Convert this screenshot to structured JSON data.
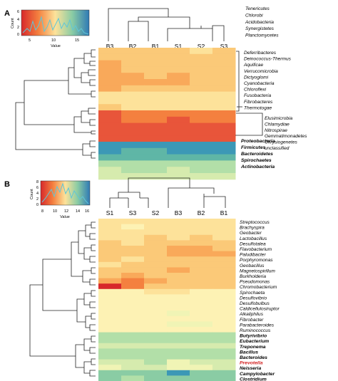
{
  "palette": [
    "#d7282b",
    "#e8553a",
    "#f4803f",
    "#f9a95a",
    "#fbc978",
    "#fde29a",
    "#fdf2b4",
    "#f0f4b5",
    "#d6ebae",
    "#b2dfa8",
    "#8acca4",
    "#5fb6a6",
    "#3c98b6",
    "#2f7ab5"
  ],
  "panels": [
    {
      "letter": "A",
      "key": {
        "ylabel": "Count",
        "xlabel": "Value",
        "yticks": [
          "0",
          "2",
          "4",
          "6"
        ],
        "xticks": [
          "5",
          "10",
          "15"
        ]
      },
      "columns": [
        "B3",
        "B2",
        "B1",
        "S1",
        "S2",
        "S3"
      ],
      "rows": [
        {
          "label": "Tenericutes",
          "vals": []
        },
        {
          "label": "Chlorobi",
          "vals": []
        },
        {
          "label": "Acidobacteria",
          "vals": []
        },
        {
          "label": "Synergistetes",
          "vals": []
        },
        {
          "label": "Planctomycetes",
          "vals": []
        },
        {
          "label": "Deferribacteres",
          "vals": [
            0.3,
            0.32,
            0.34,
            0.3,
            0.36,
            0.34
          ]
        },
        {
          "label": "Deinococcus-Thermus",
          "vals": [
            0.28,
            0.3,
            0.3,
            0.32,
            0.34,
            0.32
          ]
        },
        {
          "label": "Aquificae",
          "vals": [
            0.22,
            0.3,
            0.3,
            0.3,
            0.32,
            0.3
          ]
        },
        {
          "label": "Verrucomicrobia",
          "vals": [
            0.26,
            0.3,
            0.28,
            0.3,
            0.3,
            0.32
          ]
        },
        {
          "label": "Dictyoglomi",
          "vals": [
            0.25,
            0.26,
            0.3,
            0.26,
            0.28,
            0.28
          ]
        },
        {
          "label": "Cyanobacteria",
          "vals": [
            0.24,
            0.26,
            0.26,
            0.26,
            0.28,
            0.28
          ]
        },
        {
          "label": "Chloroflexi",
          "vals": [
            0.26,
            0.28,
            0.3,
            0.28,
            0.32,
            0.3
          ]
        },
        {
          "label": "Fusobacteria",
          "vals": [
            0.38,
            0.4,
            0.42,
            0.4,
            0.42,
            0.42
          ]
        },
        {
          "label": "Fibrobacteres",
          "vals": [
            0.36,
            0.38,
            0.4,
            0.38,
            0.4,
            0.4
          ]
        },
        {
          "label": "Thermotogae",
          "vals": [
            0.34,
            0.36,
            0.38,
            0.36,
            0.4,
            0.38
          ]
        },
        {
          "label": "Elusimicrobia",
          "vals": [
            0.1,
            0.12,
            0.14,
            0.12,
            0.14,
            0.12
          ]
        },
        {
          "label": "Chlamydiae",
          "vals": [
            0.08,
            0.12,
            0.14,
            0.1,
            0.12,
            0.12
          ]
        },
        {
          "label": "Nitrospirae",
          "vals": [
            0.06,
            0.08,
            0.1,
            0.08,
            0.1,
            0.1
          ]
        },
        {
          "label": "Gemmatimonadetes",
          "vals": [
            0.04,
            0.08,
            0.08,
            0.06,
            0.08,
            0.08
          ]
        },
        {
          "label": "Chrysiogenetes",
          "vals": [
            0.04,
            0.06,
            0.06,
            0.04,
            0.06,
            0.06
          ]
        },
        {
          "label": "unclassified",
          "vals": [
            0.92,
            0.92,
            0.9,
            0.92,
            0.94,
            0.92
          ]
        },
        {
          "label": "Proteobacteria",
          "vals": [
            0.9,
            0.88,
            0.86,
            0.9,
            0.92,
            0.9
          ]
        },
        {
          "label": "Firmicutes",
          "vals": [
            0.84,
            0.82,
            0.84,
            0.86,
            0.86,
            0.86
          ]
        },
        {
          "label": "Bacteroidetes",
          "vals": [
            0.66,
            0.7,
            0.7,
            0.7,
            0.72,
            0.72
          ]
        },
        {
          "label": "Spirochaetes",
          "vals": [
            0.62,
            0.66,
            0.66,
            0.64,
            0.68,
            0.68
          ]
        },
        {
          "label": "Actinobacteria",
          "vals": [
            0.58,
            0.6,
            0.62,
            0.6,
            0.62,
            0.62
          ]
        }
      ]
    },
    {
      "letter": "B",
      "key": {
        "ylabel": "Count",
        "xlabel": "Value",
        "yticks": [
          "0",
          "2",
          "4",
          "6",
          "8"
        ],
        "xticks": [
          "8",
          "10",
          "12",
          "14",
          "16"
        ]
      },
      "columns": [
        "S1",
        "S3",
        "S2",
        "B3",
        "B2",
        "B1"
      ],
      "rows": [
        {
          "label": "Streptococcus",
          "vals": [
            0.4,
            0.42,
            0.38,
            0.42,
            0.4,
            0.4
          ]
        },
        {
          "label": "Brachyspira",
          "vals": [
            0.42,
            0.44,
            0.4,
            0.42,
            0.4,
            0.42
          ]
        },
        {
          "label": "Geobacter",
          "vals": [
            0.38,
            0.4,
            0.36,
            0.38,
            0.36,
            0.38
          ]
        },
        {
          "label": "Lactobacillus",
          "vals": [
            0.36,
            0.38,
            0.34,
            0.36,
            0.34,
            0.36
          ]
        },
        {
          "label": "Desulfotalea",
          "vals": [
            0.34,
            0.36,
            0.32,
            0.32,
            0.3,
            0.32
          ]
        },
        {
          "label": "Flavobacterium",
          "vals": [
            0.3,
            0.32,
            0.3,
            0.26,
            0.26,
            0.28
          ]
        },
        {
          "label": "Paludibacter",
          "vals": [
            0.32,
            0.34,
            0.32,
            0.24,
            0.22,
            0.24
          ]
        },
        {
          "label": "Porphyromonas",
          "vals": [
            0.34,
            0.36,
            0.34,
            0.3,
            0.28,
            0.3
          ]
        },
        {
          "label": "Geobacillus",
          "vals": [
            0.36,
            0.34,
            0.32,
            0.3,
            0.3,
            0.32
          ]
        },
        {
          "label": "Magnetospirillum",
          "vals": [
            0.3,
            0.28,
            0.3,
            0.24,
            0.3,
            0.32
          ]
        },
        {
          "label": "Burkholderia",
          "vals": [
            0.28,
            0.26,
            0.28,
            0.28,
            0.3,
            0.32
          ]
        },
        {
          "label": "Pseudomonas",
          "vals": [
            0.2,
            0.18,
            0.26,
            0.28,
            0.3,
            0.32
          ]
        },
        {
          "label": "Chromobacterium",
          "vals": [
            0.02,
            0.16,
            0.3,
            0.32,
            0.34,
            0.34
          ]
        },
        {
          "label": "Spirochaeta",
          "vals": [
            0.44,
            0.46,
            0.42,
            0.42,
            0.44,
            0.44
          ]
        },
        {
          "label": "Desulfovibrio",
          "vals": [
            0.46,
            0.44,
            0.44,
            0.48,
            0.46,
            0.46
          ]
        },
        {
          "label": "Desulfobulbus",
          "vals": [
            0.44,
            0.46,
            0.44,
            0.46,
            0.44,
            0.46
          ]
        },
        {
          "label": "Caldicellulosiruptor",
          "vals": [
            0.46,
            0.46,
            0.44,
            0.46,
            0.46,
            0.44
          ]
        },
        {
          "label": "Alkaliphilus",
          "vals": [
            0.48,
            0.46,
            0.46,
            0.5,
            0.48,
            0.48
          ]
        },
        {
          "label": "Fibrobacter",
          "vals": [
            0.46,
            0.48,
            0.46,
            0.48,
            0.48,
            0.48
          ]
        },
        {
          "label": "Parabacteroides",
          "vals": [
            0.48,
            0.48,
            0.46,
            0.5,
            0.5,
            0.48
          ]
        },
        {
          "label": "Ruminococcus",
          "vals": [
            0.48,
            0.46,
            0.46,
            0.48,
            0.48,
            0.48
          ]
        },
        {
          "label": "Butyrivibrio",
          "vals": [
            0.7,
            0.72,
            0.7,
            0.72,
            0.7,
            0.7
          ]
        },
        {
          "label": "Eubacterium",
          "vals": [
            0.66,
            0.66,
            0.68,
            0.66,
            0.68,
            0.66
          ]
        },
        {
          "label": "Treponema",
          "vals": [
            0.62,
            0.62,
            0.64,
            0.62,
            0.62,
            0.62
          ]
        },
        {
          "label": "Bacillus",
          "vals": [
            0.66,
            0.68,
            0.66,
            0.66,
            0.68,
            0.68
          ]
        },
        {
          "label": "Bacteroides",
          "vals": [
            0.7,
            0.7,
            0.7,
            0.72,
            0.7,
            0.7
          ]
        },
        {
          "label": "Prevotella",
          "vals": [
            0.58,
            0.6,
            0.66,
            0.56,
            0.58,
            0.6
          ]
        },
        {
          "label": "Neisseria",
          "vals": [
            0.56,
            0.58,
            0.64,
            0.54,
            0.56,
            0.58
          ]
        },
        {
          "label": "Campylobacter",
          "vals": [
            0.8,
            0.76,
            0.78,
            0.96,
            0.76,
            0.78
          ]
        },
        {
          "label": "Clostridium",
          "vals": [
            0.74,
            0.72,
            0.76,
            0.74,
            0.74,
            0.74
          ]
        }
      ]
    }
  ]
}
